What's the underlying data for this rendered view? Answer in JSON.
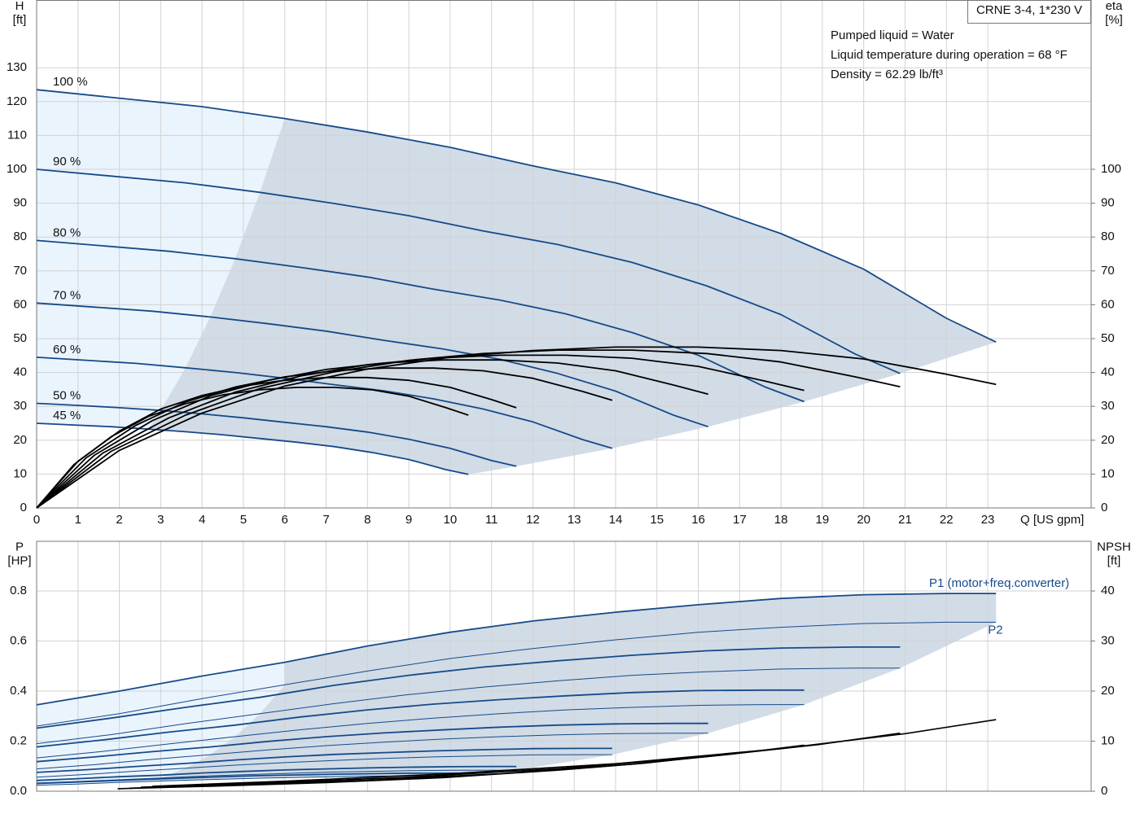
{
  "chart_data": [
    {
      "type": "line",
      "ylabel": "H",
      "yunit": "[ft]",
      "y2label": "eta",
      "y2unit": "[%]",
      "xlabel": "Q [US gpm]",
      "title": "CRNE 3-4, 1*230 V",
      "annotations": [
        "Pumped liquid = Water",
        "Liquid temperature during operation = 68 °F",
        "Density = 62.29 lb/ft³"
      ],
      "xlim": [
        0,
        25.5
      ],
      "xticks": [
        0,
        1,
        2,
        3,
        4,
        5,
        6,
        7,
        8,
        9,
        10,
        11,
        12,
        13,
        14,
        15,
        16,
        17,
        18,
        19,
        20,
        21,
        22,
        23
      ],
      "ylim": [
        0,
        150
      ],
      "yticks": [
        0,
        10,
        20,
        30,
        40,
        50,
        60,
        70,
        80,
        90,
        100,
        110,
        120,
        130
      ],
      "y2lim": [
        0,
        150
      ],
      "y2ticks": [
        0,
        10,
        20,
        30,
        40,
        50,
        60,
        70,
        80,
        90,
        100
      ],
      "grid": true,
      "series": [
        {
          "name": "100 %",
          "color": "#174a88",
          "x": [
            0,
            2,
            4,
            6,
            8,
            10,
            12,
            14,
            16,
            18,
            20,
            22,
            23.2
          ],
          "values": [
            123.5,
            121,
            118.5,
            115,
            111,
            106.5,
            101,
            96,
            89.5,
            81,
            70.5,
            56,
            49
          ]
        },
        {
          "name": "90 %",
          "color": "#174a88",
          "x": [
            0,
            1.8,
            3.6,
            5.4,
            7.2,
            9,
            10.8,
            12.6,
            14.4,
            16.2,
            18,
            19.8,
            20.88
          ],
          "values": [
            100,
            98,
            96,
            93.2,
            89.9,
            86.3,
            81.8,
            77.8,
            72.5,
            65.6,
            57.1,
            45.4,
            39.7
          ]
        },
        {
          "name": "80 %",
          "color": "#174a88",
          "x": [
            0,
            1.6,
            3.2,
            4.8,
            6.4,
            8,
            9.6,
            11.2,
            12.8,
            14.4,
            16,
            17.6,
            18.56
          ],
          "values": [
            79,
            77.4,
            75.8,
            73.6,
            71,
            68.2,
            64.6,
            61.4,
            57.3,
            51.8,
            45.1,
            35.8,
            31.4
          ]
        },
        {
          "name": "70 %",
          "color": "#174a88",
          "x": [
            0,
            1.4,
            2.8,
            4.2,
            5.6,
            7,
            8.4,
            9.8,
            11.2,
            12.6,
            14,
            15.4,
            16.24
          ],
          "values": [
            60.5,
            59.3,
            58.1,
            56.4,
            54.4,
            52.2,
            49.5,
            47,
            43.9,
            39.7,
            34.5,
            27.4,
            24
          ]
        },
        {
          "name": "60 %",
          "color": "#174a88",
          "x": [
            0,
            1.2,
            2.4,
            3.6,
            4.8,
            6,
            7.2,
            8.4,
            9.6,
            10.8,
            12,
            13.2,
            13.92
          ],
          "values": [
            44.5,
            43.6,
            42.7,
            41.4,
            40,
            38.3,
            36.4,
            34.6,
            32.2,
            29.2,
            25.4,
            20.2,
            17.6
          ]
        },
        {
          "name": "50 %",
          "color": "#174a88",
          "x": [
            0,
            1,
            2,
            3,
            4,
            5,
            6,
            7,
            8,
            9,
            10,
            11,
            11.6
          ],
          "values": [
            30.9,
            30.3,
            29.6,
            28.8,
            27.8,
            26.6,
            25.3,
            24,
            22.4,
            20.3,
            17.6,
            14,
            12.3
          ]
        },
        {
          "name": "45 %",
          "color": "#174a88",
          "x": [
            0,
            0.9,
            1.8,
            2.7,
            3.6,
            4.5,
            5.4,
            6.3,
            7.2,
            8.1,
            9,
            9.9,
            10.44
          ],
          "values": [
            25,
            24.5,
            24,
            23.3,
            22.5,
            21.6,
            20.5,
            19.4,
            18.1,
            16.4,
            14.3,
            11.3,
            9.9
          ]
        }
      ],
      "eta_series": [
        {
          "axis": "y2",
          "color": "#000000",
          "x": [
            0,
            2,
            4,
            6,
            8,
            10,
            12,
            14,
            16,
            18,
            20,
            22,
            23.2
          ],
          "values": [
            0,
            17,
            28,
            36,
            41,
            44.5,
            46.5,
            47.5,
            47.5,
            46.5,
            44,
            39.5,
            36.5
          ]
        },
        {
          "axis": "y2",
          "color": "#000000",
          "x": [
            0,
            1.8,
            3.6,
            5.4,
            7.2,
            9,
            10.8,
            12.6,
            14.4,
            16.2,
            18,
            19.8,
            20.88
          ],
          "values": [
            0,
            16.7,
            27.4,
            35.3,
            40.2,
            43.6,
            45.6,
            46.6,
            46.6,
            45.6,
            43.1,
            38.7,
            35.8
          ]
        },
        {
          "axis": "y2",
          "color": "#000000",
          "x": [
            0,
            1.6,
            3.2,
            4.8,
            6.4,
            8,
            9.6,
            11.2,
            12.8,
            14.4,
            16,
            17.6,
            18.56
          ],
          "values": [
            0,
            16.2,
            26.6,
            34.2,
            39,
            42.3,
            44.2,
            45.1,
            45.1,
            44.2,
            41.8,
            37.5,
            34.7
          ]
        },
        {
          "axis": "y2",
          "color": "#000000",
          "x": [
            0,
            1.4,
            2.8,
            4.2,
            5.6,
            7,
            8.4,
            9.8,
            11.2,
            12.6,
            14,
            15.4,
            16.24
          ],
          "values": [
            0,
            15.6,
            25.8,
            33.1,
            37.7,
            40.9,
            42.8,
            43.7,
            43.7,
            42.8,
            40.5,
            36.3,
            33.6
          ]
        },
        {
          "axis": "y2",
          "color": "#000000",
          "x": [
            0,
            1.2,
            2.4,
            3.6,
            4.8,
            6,
            7.2,
            8.4,
            9.6,
            10.8,
            12,
            13.2,
            13.92
          ],
          "values": [
            0,
            14.8,
            24.4,
            31.3,
            35.7,
            38.7,
            40.5,
            41.3,
            41.3,
            40.5,
            38.3,
            34.4,
            31.8
          ]
        },
        {
          "axis": "y2",
          "color": "#000000",
          "x": [
            0,
            1,
            2,
            3,
            4,
            5,
            6,
            7,
            8,
            9,
            10,
            11,
            11.6
          ],
          "values": [
            0,
            13.8,
            22.7,
            29.2,
            33.2,
            36,
            37.7,
            38.5,
            38.5,
            37.7,
            35.6,
            32,
            29.6
          ]
        },
        {
          "axis": "y2",
          "color": "#000000",
          "x": [
            0,
            0.9,
            1.8,
            2.7,
            3.6,
            4.5,
            5.4,
            6.3,
            7.2,
            8.1,
            9,
            9.9,
            10.44
          ],
          "values": [
            0,
            12.8,
            21,
            27,
            30.8,
            33.4,
            34.9,
            35.6,
            35.6,
            34.9,
            33,
            29.6,
            27.4
          ]
        }
      ]
    },
    {
      "type": "line",
      "ylabel": "P",
      "yunit": "[HP]",
      "y2label": "NPSH",
      "y2unit": "[ft]",
      "xlim": [
        0,
        25.5
      ],
      "ylim": [
        0,
        1.0
      ],
      "yticks": [
        {
          "value": 0,
          "label": "0.0"
        },
        0.2,
        0.4,
        0.6,
        0.8
      ],
      "y2lim": [
        0,
        50
      ],
      "y2ticks": [
        0,
        10,
        20,
        30,
        40
      ],
      "grid": true,
      "series": [
        {
          "name": "P1 (motor+freq.converter)",
          "color": "#174a88",
          "x": [
            0,
            2,
            4,
            6,
            8,
            10,
            12,
            14,
            16,
            18,
            20,
            22,
            23.2
          ],
          "values": [
            0.345,
            0.4,
            0.46,
            0.515,
            0.58,
            0.635,
            0.68,
            0.715,
            0.745,
            0.77,
            0.785,
            0.79,
            0.79
          ]
        },
        {
          "color": "#174a88",
          "x": [
            0,
            1.8,
            3.6,
            5.4,
            7.2,
            9,
            10.8,
            12.6,
            14.4,
            16.2,
            18,
            19.8,
            20.88
          ],
          "values": [
            0.252,
            0.292,
            0.335,
            0.375,
            0.423,
            0.463,
            0.496,
            0.521,
            0.543,
            0.561,
            0.572,
            0.576,
            0.576
          ]
        },
        {
          "color": "#174a88",
          "x": [
            0,
            1.6,
            3.2,
            4.8,
            6.4,
            8,
            9.6,
            11.2,
            12.8,
            14.4,
            16,
            17.6,
            18.56
          ],
          "values": [
            0.177,
            0.205,
            0.236,
            0.264,
            0.297,
            0.325,
            0.348,
            0.366,
            0.381,
            0.394,
            0.402,
            0.404,
            0.404
          ]
        },
        {
          "color": "#174a88",
          "x": [
            0,
            1.4,
            2.8,
            4.2,
            5.6,
            7,
            8.4,
            9.8,
            11.2,
            12.6,
            14,
            15.4,
            16.24
          ],
          "values": [
            0.118,
            0.137,
            0.158,
            0.177,
            0.199,
            0.218,
            0.233,
            0.245,
            0.256,
            0.264,
            0.269,
            0.271,
            0.271
          ]
        },
        {
          "color": "#174a88",
          "x": [
            0,
            1.2,
            2.4,
            3.6,
            4.8,
            6,
            7.2,
            8.4,
            9.6,
            10.8,
            12,
            13.2,
            13.92
          ],
          "values": [
            0.075,
            0.086,
            0.099,
            0.111,
            0.125,
            0.137,
            0.147,
            0.154,
            0.161,
            0.166,
            0.17,
            0.171,
            0.171
          ]
        },
        {
          "color": "#174a88",
          "x": [
            0,
            1,
            2,
            3,
            4,
            5,
            6,
            7,
            8,
            9,
            10,
            11,
            11.6
          ],
          "values": [
            0.043,
            0.05,
            0.058,
            0.064,
            0.073,
            0.079,
            0.085,
            0.089,
            0.093,
            0.096,
            0.098,
            0.099,
            0.099
          ]
        },
        {
          "color": "#174a88",
          "x": [
            0,
            0.9,
            1.8,
            2.7,
            3.6,
            4.5,
            5.4,
            6.3,
            7.2,
            8.1,
            9,
            9.9,
            10.44
          ],
          "values": [
            0.031,
            0.036,
            0.042,
            0.047,
            0.053,
            0.058,
            0.062,
            0.065,
            0.068,
            0.07,
            0.072,
            0.072,
            0.072
          ]
        }
      ],
      "p2_series": [
        {
          "name": "P2",
          "color": "#174a88",
          "x": [
            0,
            2,
            4,
            6,
            8,
            10,
            12,
            14,
            16,
            18,
            20,
            22,
            23.2
          ],
          "values": [
            0.26,
            0.31,
            0.37,
            0.425,
            0.48,
            0.53,
            0.57,
            0.605,
            0.635,
            0.655,
            0.67,
            0.675,
            0.675
          ]
        },
        {
          "color": "#174a88",
          "x": [
            0,
            1.8,
            3.6,
            5.4,
            7.2,
            9,
            10.8,
            12.6,
            14.4,
            16.2,
            18,
            19.8,
            20.88
          ],
          "values": [
            0.19,
            0.226,
            0.27,
            0.31,
            0.35,
            0.386,
            0.416,
            0.441,
            0.463,
            0.477,
            0.488,
            0.492,
            0.492
          ]
        },
        {
          "color": "#174a88",
          "x": [
            0,
            1.6,
            3.2,
            4.8,
            6.4,
            8,
            9.6,
            11.2,
            12.8,
            14.4,
            16,
            17.6,
            18.56
          ],
          "values": [
            0.133,
            0.159,
            0.189,
            0.218,
            0.246,
            0.271,
            0.292,
            0.31,
            0.325,
            0.335,
            0.343,
            0.346,
            0.346
          ]
        },
        {
          "color": "#174a88",
          "x": [
            0,
            1.4,
            2.8,
            4.2,
            5.6,
            7,
            8.4,
            9.8,
            11.2,
            12.6,
            14,
            15.4,
            16.24
          ],
          "values": [
            0.089,
            0.106,
            0.127,
            0.146,
            0.165,
            0.182,
            0.196,
            0.208,
            0.218,
            0.225,
            0.23,
            0.232,
            0.232
          ]
        },
        {
          "color": "#174a88",
          "x": [
            0,
            1.2,
            2.4,
            3.6,
            4.8,
            6,
            7.2,
            8.4,
            9.6,
            10.8,
            12,
            13.2,
            13.92
          ],
          "values": [
            0.056,
            0.067,
            0.08,
            0.092,
            0.104,
            0.114,
            0.123,
            0.131,
            0.137,
            0.141,
            0.145,
            0.146,
            0.146
          ]
        },
        {
          "color": "#174a88",
          "x": [
            0,
            1,
            2,
            3,
            4,
            5,
            6,
            7,
            8,
            9,
            10,
            11,
            11.6
          ],
          "values": [
            0.033,
            0.039,
            0.046,
            0.053,
            0.06,
            0.066,
            0.071,
            0.076,
            0.079,
            0.082,
            0.084,
            0.084,
            0.084
          ]
        },
        {
          "color": "#174a88",
          "x": [
            0,
            0.9,
            1.8,
            2.7,
            3.6,
            4.5,
            5.4,
            6.3,
            7.2,
            8.1,
            9,
            9.9,
            10.44
          ],
          "values": [
            0.024,
            0.028,
            0.034,
            0.039,
            0.044,
            0.048,
            0.052,
            0.055,
            0.058,
            0.06,
            0.061,
            0.061,
            0.061
          ]
        }
      ],
      "npsh_series": [
        {
          "axis": "y2",
          "color": "#000000",
          "x": [
            2.8,
            6,
            10,
            14,
            18,
            21,
            23.2
          ],
          "values": [
            1,
            2,
            3.5,
            5.5,
            8.5,
            11.5,
            14.3
          ]
        },
        {
          "axis": "y2",
          "color": "#000000",
          "x": [
            2.52,
            5.4,
            9,
            12.6,
            16.2,
            18.9,
            20.88
          ],
          "values": [
            0.8,
            1.6,
            2.8,
            4.5,
            6.9,
            9.3,
            11.6
          ]
        },
        {
          "axis": "y2",
          "color": "#000000",
          "x": [
            2.24,
            4.8,
            8,
            11.2,
            14.4,
            16.8,
            18.56
          ],
          "values": [
            0.6,
            1.3,
            2.2,
            3.5,
            5.4,
            7.4,
            9.2
          ]
        },
        {
          "axis": "y2",
          "color": "#000000",
          "x": [
            1.96,
            4.2,
            7,
            9.8,
            12.6,
            14.7,
            16.24
          ],
          "values": [
            0.5,
            1,
            1.7,
            2.7,
            4.2,
            5.6,
            7
          ]
        }
      ]
    }
  ]
}
